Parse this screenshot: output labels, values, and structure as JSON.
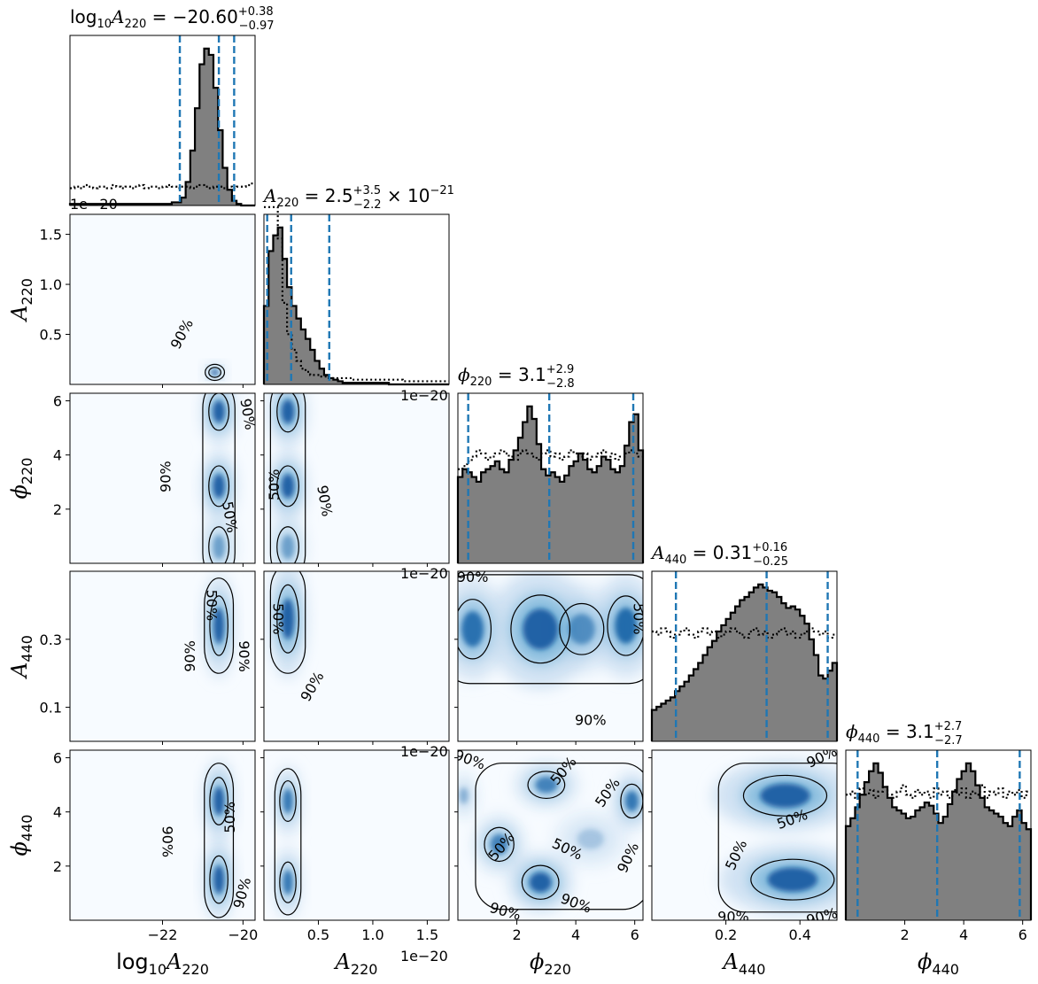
{
  "chart_data": {
    "type": "corner",
    "parameters": [
      {
        "id": "log10A220",
        "label_prefix": "log",
        "label_prefix_sub": "10",
        "label_main": "A",
        "label_sub": "220",
        "range": [
          -24.3,
          -19.7
        ],
        "ticks": [
          -22,
          -20
        ],
        "tick_labels": [
          "−22",
          "−20"
        ],
        "title": {
          "prefix": "log",
          "prefix_sub": "10",
          "main": "A",
          "sub": "220",
          "value": " = −20.60",
          "plus": "+0.38",
          "minus": "−0.97",
          "suffix": ""
        },
        "quantiles": [
          -21.57,
          -20.6,
          -20.22
        ]
      },
      {
        "id": "A220",
        "label_main": "A",
        "label_sub": "220",
        "range": [
          0.0,
          1.7
        ],
        "ticks": [
          0.5,
          1.0,
          1.5
        ],
        "tick_labels": [
          "0.5",
          "1.0",
          "1.5"
        ],
        "yticks": [
          0.5,
          1.0,
          1.5
        ],
        "ytick_labels": [
          "0.5",
          "1.0",
          "1.5"
        ],
        "offset_text": "1e−20",
        "title": {
          "main": "A",
          "sub": "220",
          "value": " = 2.5",
          "plus": "+3.5",
          "minus": "−2.2",
          "suffix": " × 10",
          "suffix_sup": "−21"
        },
        "quantiles": [
          0.03,
          0.25,
          0.6
        ]
      },
      {
        "id": "phi220",
        "label_main": "ϕ",
        "label_sub": "220",
        "range": [
          0.0,
          6.28
        ],
        "ticks": [
          2,
          4,
          6
        ],
        "tick_labels": [
          "2",
          "4",
          "6"
        ],
        "yticks": [
          2,
          4,
          6
        ],
        "ytick_labels": [
          "2",
          "4",
          "6"
        ],
        "title": {
          "main": "ϕ",
          "sub": "220",
          "value": " = 3.1",
          "plus": "+2.9",
          "minus": "−2.8",
          "suffix": ""
        },
        "quantiles": [
          0.35,
          3.1,
          5.95
        ]
      },
      {
        "id": "A440",
        "label_main": "A",
        "label_sub": "440",
        "range": [
          0.0,
          0.5
        ],
        "ticks": [
          0.2,
          0.4
        ],
        "tick_labels": [
          "0.2",
          "0.4"
        ],
        "yticks": [
          0.1,
          0.3
        ],
        "ytick_labels": [
          "0.1",
          "0.3"
        ],
        "title": {
          "main": "A",
          "sub": "440",
          "value": " = 0.31",
          "plus": "+0.16",
          "minus": "−0.25",
          "suffix": ""
        },
        "quantiles": [
          0.065,
          0.31,
          0.475
        ]
      },
      {
        "id": "phi440",
        "label_main": "ϕ",
        "label_sub": "440",
        "range": [
          0.0,
          6.28
        ],
        "ticks": [
          2,
          4,
          6
        ],
        "tick_labels": [
          "2",
          "4",
          "6"
        ],
        "yticks": [
          2,
          4,
          6
        ],
        "ytick_labels": [
          "2",
          "4",
          "6"
        ],
        "title": {
          "main": "ϕ",
          "sub": "440",
          "value": " = 3.1",
          "plus": "+2.7",
          "minus": "−2.7",
          "suffix": ""
        },
        "quantiles": [
          0.4,
          3.1,
          5.9
        ]
      }
    ],
    "histograms": [
      {
        "param": "log10A220",
        "posterior": [
          0.01,
          0.01,
          0.01,
          0.01,
          0.01,
          0.01,
          0.01,
          0.01,
          0.01,
          0.01,
          0.01,
          0.01,
          0.01,
          0.01,
          0.01,
          0.01,
          0.01,
          0.01,
          0.01,
          0.01,
          0.01,
          0.01,
          0.02,
          0.02,
          0.05,
          0.15,
          0.35,
          0.62,
          0.9,
          1.0,
          0.96,
          0.75,
          0.48,
          0.24,
          0.1,
          0.03,
          0.01,
          0.0,
          0.0,
          0.0
        ],
        "prior": [
          0.11,
          0.12,
          0.11,
          0.13,
          0.12,
          0.11,
          0.12,
          0.12,
          0.11,
          0.13,
          0.12,
          0.11,
          0.12,
          0.11,
          0.12,
          0.13,
          0.11,
          0.12,
          0.12,
          0.11,
          0.12,
          0.13,
          0.12,
          0.11,
          0.12,
          0.12,
          0.11,
          0.12,
          0.13,
          0.12,
          0.11,
          0.12,
          0.12,
          0.11,
          0.12,
          0.11,
          0.12,
          0.12,
          0.13,
          0.14
        ]
      },
      {
        "param": "A220",
        "posterior": [
          0.5,
          0.85,
          0.95,
          1.0,
          0.8,
          0.62,
          0.5,
          0.42,
          0.35,
          0.29,
          0.22,
          0.15,
          0.1,
          0.06,
          0.04,
          0.03,
          0.02,
          0.01,
          0.01,
          0.01,
          0.01,
          0.01,
          0.01,
          0.01,
          0.01,
          0.01,
          0.01,
          0.0,
          0.0,
          0.0,
          0.0,
          0.0,
          0.0,
          0.0,
          0.0,
          0.0,
          0.0,
          0.0,
          0.0,
          0.0
        ],
        "prior": [
          1.13,
          1.13,
          1.13,
          0.93,
          0.52,
          0.32,
          0.22,
          0.15,
          0.1,
          0.08,
          0.06,
          0.06,
          0.05,
          0.05,
          0.04,
          0.04,
          0.04,
          0.04,
          0.04,
          0.03,
          0.03,
          0.03,
          0.03,
          0.03,
          0.03,
          0.03,
          0.03,
          0.03,
          0.03,
          0.03,
          0.02,
          0.02,
          0.02,
          0.02,
          0.02,
          0.02,
          0.02,
          0.02,
          0.02,
          0.02
        ]
      },
      {
        "param": "phi220",
        "posterior": [
          0.55,
          0.6,
          0.58,
          0.55,
          0.52,
          0.58,
          0.6,
          0.62,
          0.65,
          0.6,
          0.58,
          0.66,
          0.72,
          0.8,
          0.9,
          1.0,
          0.92,
          0.76,
          0.6,
          0.56,
          0.58,
          0.55,
          0.52,
          0.56,
          0.62,
          0.65,
          0.7,
          0.66,
          0.6,
          0.58,
          0.62,
          0.68,
          0.66,
          0.6,
          0.58,
          0.62,
          0.75,
          0.9,
          0.95,
          0.72
        ],
        "prior": [
          0.6,
          0.62,
          0.65,
          0.68,
          0.72,
          0.7,
          0.66,
          0.68,
          0.7,
          0.72,
          0.7,
          0.68,
          0.66,
          0.7,
          0.72,
          0.7,
          0.68,
          0.66,
          0.7,
          0.72,
          0.68,
          0.7,
          0.66,
          0.68,
          0.72,
          0.7,
          0.68,
          0.7,
          0.66,
          0.68,
          0.7,
          0.72,
          0.68,
          0.7,
          0.66,
          0.68,
          0.7,
          0.72,
          0.7,
          0.68
        ]
      },
      {
        "param": "A440",
        "posterior": [
          0.2,
          0.22,
          0.24,
          0.26,
          0.28,
          0.32,
          0.35,
          0.38,
          0.42,
          0.46,
          0.5,
          0.55,
          0.6,
          0.64,
          0.7,
          0.74,
          0.78,
          0.82,
          0.86,
          0.9,
          0.92,
          0.95,
          0.98,
          1.0,
          0.98,
          0.96,
          0.95,
          0.92,
          0.88,
          0.85,
          0.86,
          0.84,
          0.8,
          0.75,
          0.65,
          0.55,
          0.42,
          0.4,
          0.45,
          0.5
        ],
        "prior": [
          0.7,
          0.68,
          0.72,
          0.7,
          0.66,
          0.68,
          0.7,
          0.72,
          0.68,
          0.66,
          0.7,
          0.72,
          0.68,
          0.7,
          0.66,
          0.68,
          0.7,
          0.72,
          0.7,
          0.68,
          0.66,
          0.7,
          0.72,
          0.68,
          0.7,
          0.66,
          0.68,
          0.7,
          0.72,
          0.68,
          0.7,
          0.66,
          0.68,
          0.7,
          0.72,
          0.7,
          0.68,
          0.7,
          0.66,
          0.68
        ]
      },
      {
        "param": "phi440",
        "posterior": [
          0.6,
          0.65,
          0.72,
          0.8,
          0.88,
          0.95,
          1.0,
          0.94,
          0.85,
          0.78,
          0.72,
          0.7,
          0.68,
          0.65,
          0.66,
          0.7,
          0.72,
          0.75,
          0.73,
          0.68,
          0.62,
          0.66,
          0.74,
          0.82,
          0.9,
          0.95,
          1.0,
          0.95,
          0.86,
          0.78,
          0.72,
          0.7,
          0.68,
          0.66,
          0.62,
          0.6,
          0.66,
          0.7,
          0.62,
          0.58
        ],
        "prior": [
          0.8,
          0.82,
          0.78,
          0.84,
          0.8,
          0.83,
          0.78,
          0.82,
          0.85,
          0.8,
          0.78,
          0.82,
          0.86,
          0.8,
          0.78,
          0.83,
          0.8,
          0.82,
          0.78,
          0.84,
          0.8,
          0.82,
          0.78,
          0.83,
          0.8,
          0.84,
          0.78,
          0.82,
          0.8,
          0.86,
          0.78,
          0.82,
          0.8,
          0.84,
          0.78,
          0.82,
          0.8,
          0.83,
          0.78,
          0.82
        ]
      }
    ],
    "density_panels": [
      {
        "x": "log10A220",
        "y": "A220",
        "blobs": [
          {
            "cx": -20.7,
            "cy": 0.12,
            "sx": 0.12,
            "sy": 0.04,
            "w": 1.0
          }
        ],
        "contour_labels": [
          {
            "text": "90%",
            "x": -21.5,
            "y": 0.5,
            "rot": -62
          }
        ]
      },
      {
        "x": "log10A220",
        "y": "phi220",
        "blobs": [
          {
            "cx": -20.6,
            "cy": 5.6,
            "sx": 0.2,
            "sy": 0.55,
            "w": 1.0
          },
          {
            "cx": -20.6,
            "cy": 2.85,
            "sx": 0.2,
            "sy": 0.6,
            "w": 1.0
          },
          {
            "cx": -20.6,
            "cy": 0.6,
            "sx": 0.2,
            "sy": 0.6,
            "w": 0.5
          }
        ],
        "contour_labels": [
          {
            "text": "90%",
            "x": -21.9,
            "y": 3.2,
            "rot": -90
          },
          {
            "text": "50%",
            "x": -20.35,
            "y": 1.7,
            "rot": 80
          },
          {
            "text": "90%",
            "x": -19.9,
            "y": 5.5,
            "rot": 80
          }
        ]
      },
      {
        "x": "A220",
        "y": "phi220",
        "blobs": [
          {
            "cx": 0.22,
            "cy": 5.6,
            "sx": 0.08,
            "sy": 0.6,
            "w": 1.0
          },
          {
            "cx": 0.22,
            "cy": 2.85,
            "sx": 0.08,
            "sy": 0.6,
            "w": 1.0
          },
          {
            "cx": 0.22,
            "cy": 0.6,
            "sx": 0.08,
            "sy": 0.6,
            "w": 0.5
          }
        ],
        "contour_labels": [
          {
            "text": "50%",
            "x": 0.1,
            "y": 2.9,
            "rot": -90
          },
          {
            "text": "90%",
            "x": 0.55,
            "y": 2.3,
            "rot": 80
          }
        ]
      },
      {
        "x": "log10A220",
        "y": "A440",
        "blobs": [
          {
            "cx": -20.6,
            "cy": 0.34,
            "sx": 0.18,
            "sy": 0.07,
            "w": 1.0
          }
        ],
        "contour_labels": [
          {
            "text": "50%",
            "x": -20.8,
            "y": 0.4,
            "rot": 90
          },
          {
            "text": "90%",
            "x": -21.3,
            "y": 0.25,
            "rot": -90
          },
          {
            "text": "90%",
            "x": -20.0,
            "y": 0.25,
            "rot": 90
          }
        ]
      },
      {
        "x": "A220",
        "y": "A440",
        "blobs": [
          {
            "cx": 0.22,
            "cy": 0.36,
            "sx": 0.08,
            "sy": 0.08,
            "w": 1.0
          }
        ],
        "contour_labels": [
          {
            "text": "50%",
            "x": 0.12,
            "y": 0.36,
            "rot": 90
          },
          {
            "text": "90%",
            "x": 0.45,
            "y": 0.16,
            "rot": -60
          }
        ]
      },
      {
        "x": "phi220",
        "y": "A440",
        "blobs": [
          {
            "cx": 0.5,
            "cy": 0.33,
            "sx": 0.5,
            "sy": 0.07,
            "w": 0.85
          },
          {
            "cx": 2.8,
            "cy": 0.33,
            "sx": 0.8,
            "sy": 0.08,
            "w": 1.0
          },
          {
            "cx": 5.7,
            "cy": 0.34,
            "sx": 0.5,
            "sy": 0.07,
            "w": 0.9
          },
          {
            "cx": 4.2,
            "cy": 0.33,
            "sx": 0.6,
            "sy": 0.06,
            "w": 0.6
          }
        ],
        "contour_labels": [
          {
            "text": "90%",
            "x": 0.5,
            "y": 0.48,
            "rot": 0
          },
          {
            "text": "90%",
            "x": 4.5,
            "y": 0.06,
            "rot": 0
          },
          {
            "text": "50%",
            "x": 6.1,
            "y": 0.36,
            "rot": 90
          }
        ]
      },
      {
        "x": "log10A220",
        "y": "phi440",
        "blobs": [
          {
            "cx": -20.6,
            "cy": 4.4,
            "sx": 0.18,
            "sy": 0.7,
            "w": 1.0
          },
          {
            "cx": -20.6,
            "cy": 1.5,
            "sx": 0.18,
            "sy": 0.7,
            "w": 1.0
          }
        ],
        "contour_labels": [
          {
            "text": "90%",
            "x": -21.9,
            "y": 2.9,
            "rot": 90
          },
          {
            "text": "50%",
            "x": -20.3,
            "y": 3.8,
            "rot": -90
          },
          {
            "text": "90%",
            "x": -20.0,
            "y": 1.0,
            "rot": -75
          }
        ]
      },
      {
        "x": "A220",
        "y": "phi440",
        "blobs": [
          {
            "cx": 0.22,
            "cy": 4.4,
            "sx": 0.06,
            "sy": 0.6,
            "w": 0.8
          },
          {
            "cx": 0.22,
            "cy": 1.4,
            "sx": 0.06,
            "sy": 0.6,
            "w": 0.8
          }
        ],
        "contour_labels": []
      },
      {
        "x": "phi220",
        "y": "phi440",
        "blobs": [
          {
            "cx": 2.8,
            "cy": 1.4,
            "sx": 0.5,
            "sy": 0.5,
            "w": 1.0
          },
          {
            "cx": 1.4,
            "cy": 2.8,
            "sx": 0.4,
            "sy": 0.5,
            "w": 0.7
          },
          {
            "cx": 3.0,
            "cy": 5.0,
            "sx": 0.5,
            "sy": 0.4,
            "w": 0.7
          },
          {
            "cx": 5.9,
            "cy": 4.4,
            "sx": 0.3,
            "sy": 0.5,
            "w": 0.8
          },
          {
            "cx": 4.5,
            "cy": 3.0,
            "sx": 0.6,
            "sy": 0.5,
            "w": 0.25
          },
          {
            "cx": 0.2,
            "cy": 4.6,
            "sx": 0.2,
            "sy": 0.4,
            "w": 0.4
          }
        ],
        "contour_labels": [
          {
            "text": "50%",
            "x": 1.5,
            "y": 2.7,
            "rot": -50
          },
          {
            "text": "50%",
            "x": 3.7,
            "y": 2.6,
            "rot": 25
          },
          {
            "text": "50%",
            "x": 3.6,
            "y": 5.5,
            "rot": -50
          },
          {
            "text": "50%",
            "x": 5.1,
            "y": 4.7,
            "rot": -55
          },
          {
            "text": "90%",
            "x": 1.6,
            "y": 0.3,
            "rot": 15
          },
          {
            "text": "90%",
            "x": 4.0,
            "y": 0.6,
            "rot": 20
          },
          {
            "text": "90%",
            "x": 5.8,
            "y": 2.3,
            "rot": -65
          },
          {
            "text": "90%",
            "x": 0.4,
            "y": 5.9,
            "rot": 20
          }
        ]
      },
      {
        "x": "A440",
        "y": "phi440",
        "blobs": [
          {
            "cx": 0.36,
            "cy": 4.6,
            "sx": 0.09,
            "sy": 0.6,
            "w": 1.0
          },
          {
            "cx": 0.38,
            "cy": 1.5,
            "sx": 0.09,
            "sy": 0.6,
            "w": 1.0
          }
        ],
        "contour_labels": [
          {
            "text": "50%",
            "x": 0.38,
            "y": 3.7,
            "rot": -20
          },
          {
            "text": "50%",
            "x": 0.23,
            "y": 2.4,
            "rot": -65
          },
          {
            "text": "90%",
            "x": 0.22,
            "y": 0.1,
            "rot": 0
          },
          {
            "text": "90%",
            "x": 0.46,
            "y": 6.0,
            "rot": -25
          },
          {
            "text": "90%",
            "x": 0.46,
            "y": 0.1,
            "rot": -15
          }
        ]
      }
    ]
  }
}
